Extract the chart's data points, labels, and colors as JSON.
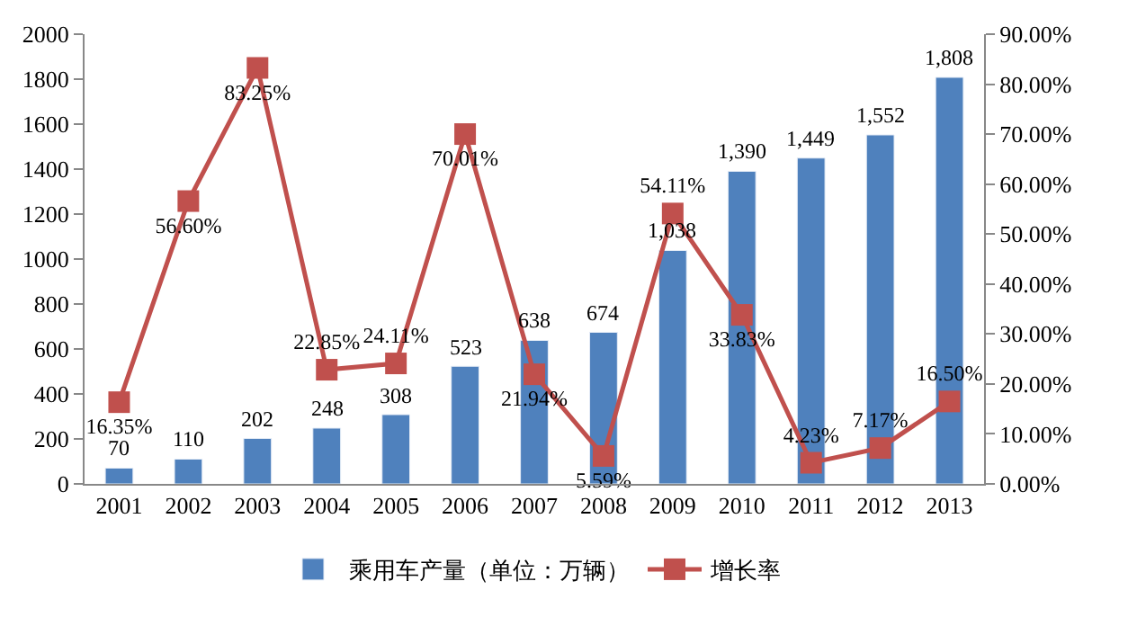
{
  "chart_data": {
    "type": "bar",
    "categories": [
      "2001",
      "2002",
      "2003",
      "2004",
      "2005",
      "2006",
      "2007",
      "2008",
      "2009",
      "2010",
      "2011",
      "2012",
      "2013"
    ],
    "series": [
      {
        "name": "乘用车产量（单位：万辆）",
        "color": "#4f81bd",
        "values": [
          70,
          110,
          202,
          248,
          308,
          523,
          638,
          674,
          1038,
          1390,
          1449,
          1552,
          1808
        ],
        "value_labels": [
          "70",
          "110",
          "202",
          "248",
          "308",
          "523",
          "638",
          "674",
          "1,038",
          "1,390",
          "1,449",
          "1,552",
          "1,808"
        ]
      },
      {
        "name": "增长率",
        "type": "line",
        "axis": "y2",
        "color": "#c0504d",
        "marker": "square",
        "values": [
          16.35,
          56.6,
          83.25,
          22.85,
          24.11,
          70.01,
          21.94,
          5.59,
          54.11,
          33.83,
          4.23,
          7.17,
          16.5
        ],
        "value_labels": [
          "16.35%",
          "56.60%",
          "83.25%",
          "22.85%",
          "24.11%",
          "70.01%",
          "21.94%",
          "5.59%",
          "54.11%",
          "33.83%",
          "4.23%",
          "7.17%",
          "16.50%"
        ]
      }
    ],
    "ylim": [
      0,
      2000
    ],
    "yticks": [
      0,
      200,
      400,
      600,
      800,
      1000,
      1200,
      1400,
      1600,
      1800,
      2000
    ],
    "y2lim": [
      0,
      90
    ],
    "y2ticks": [
      {
        "value": 0,
        "label": "0.00%"
      },
      {
        "value": 10,
        "label": "10.00%"
      },
      {
        "value": 20,
        "label": "20.00%"
      },
      {
        "value": 30,
        "label": "30.00%"
      },
      {
        "value": 40,
        "label": "40.00%"
      },
      {
        "value": 50,
        "label": "50.00%"
      },
      {
        "value": 60,
        "label": "60.00%"
      },
      {
        "value": 70,
        "label": "70.00%"
      },
      {
        "value": 80,
        "label": "80.00%"
      },
      {
        "value": 90,
        "label": "90.00%"
      }
    ],
    "legend": "bottom"
  }
}
